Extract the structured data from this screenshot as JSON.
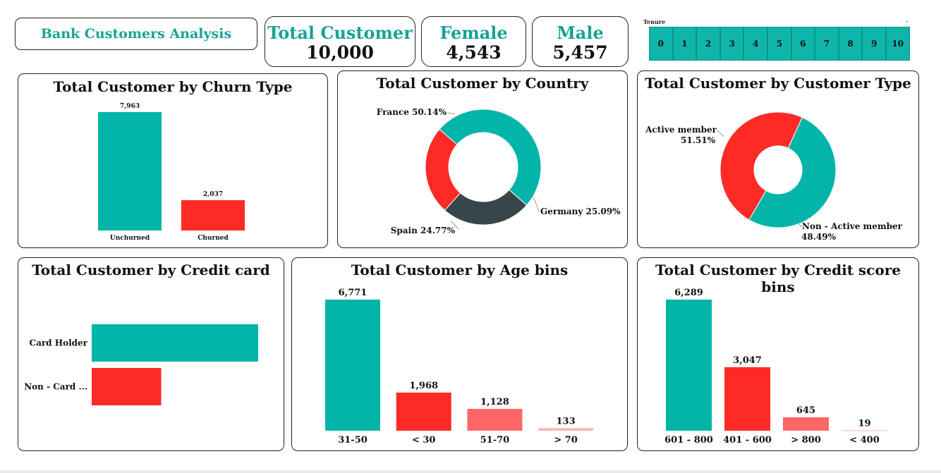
{
  "header": {
    "title": "Bank Customers Analysis"
  },
  "kpis": [
    {
      "label": "Total Customer",
      "value": "10,000"
    },
    {
      "label": "Female",
      "value": "4,543"
    },
    {
      "label": "Male",
      "value": "5,457"
    }
  ],
  "slicer": {
    "label": "Tenure",
    "chevron": "⌄",
    "items": [
      "0",
      "1",
      "2",
      "3",
      "4",
      "5",
      "6",
      "7",
      "8",
      "9",
      "10"
    ]
  },
  "colors": {
    "teal": "#03b5a9",
    "red": "#fd2a26",
    "salmon": "#fe6766",
    "pink": "#f8b6b2",
    "dark": "#374649"
  },
  "chart_data": [
    {
      "id": "churn",
      "type": "bar",
      "title": "Total Customer by Churn Type",
      "categories": [
        "Unchurned",
        "Churned"
      ],
      "values": [
        7963,
        2037
      ],
      "labels": [
        "7,963",
        "2,037"
      ],
      "colors": [
        "#03b5a9",
        "#fd2a26"
      ]
    },
    {
      "id": "country",
      "type": "pie",
      "title": "Total Customer by Country",
      "categories": [
        "France",
        "Germany",
        "Spain"
      ],
      "values": [
        50.14,
        25.09,
        24.77
      ],
      "labels": [
        "France 50.14%",
        "Germany 25.09%",
        "Spain 24.77%"
      ],
      "colors": [
        "#03b5a9",
        "#374649",
        "#fd2a26"
      ]
    },
    {
      "id": "custtype",
      "type": "pie",
      "title": "Total Customer by Customer Type",
      "categories": [
        "Active member",
        "Non - Active member"
      ],
      "values": [
        51.51,
        48.49
      ],
      "labels": [
        "51.51%",
        "48.49%"
      ],
      "colors": [
        "#03b5a9",
        "#fd2a26"
      ]
    },
    {
      "id": "card",
      "type": "bar",
      "orientation": "horizontal",
      "title": "Total Customer by Credit card",
      "categories": [
        "Card Holder",
        "Non - Card ..."
      ],
      "values": [
        7055,
        2945
      ],
      "colors": [
        "#03b5a9",
        "#fd2a26"
      ]
    },
    {
      "id": "age",
      "type": "bar",
      "title": "Total Customer by Age bins",
      "categories": [
        "31-50",
        "< 30",
        "51-70",
        "> 70"
      ],
      "values": [
        6771,
        1968,
        1128,
        133
      ],
      "labels": [
        "6,771",
        "1,968",
        "1,128",
        "133"
      ],
      "colors": [
        "#03b5a9",
        "#fd2a26",
        "#fe6766",
        "#f8b6b2"
      ]
    },
    {
      "id": "credit",
      "type": "bar",
      "title": "Total Customer by Credit score bins",
      "categories": [
        "601 - 800",
        "401 - 600",
        "> 800",
        "< 400"
      ],
      "values": [
        6289,
        3047,
        645,
        19
      ],
      "labels": [
        "6,289",
        "3,047",
        "645",
        "19"
      ],
      "colors": [
        "#03b5a9",
        "#fd2a26",
        "#fe6766",
        "#f8b6b2"
      ]
    }
  ]
}
